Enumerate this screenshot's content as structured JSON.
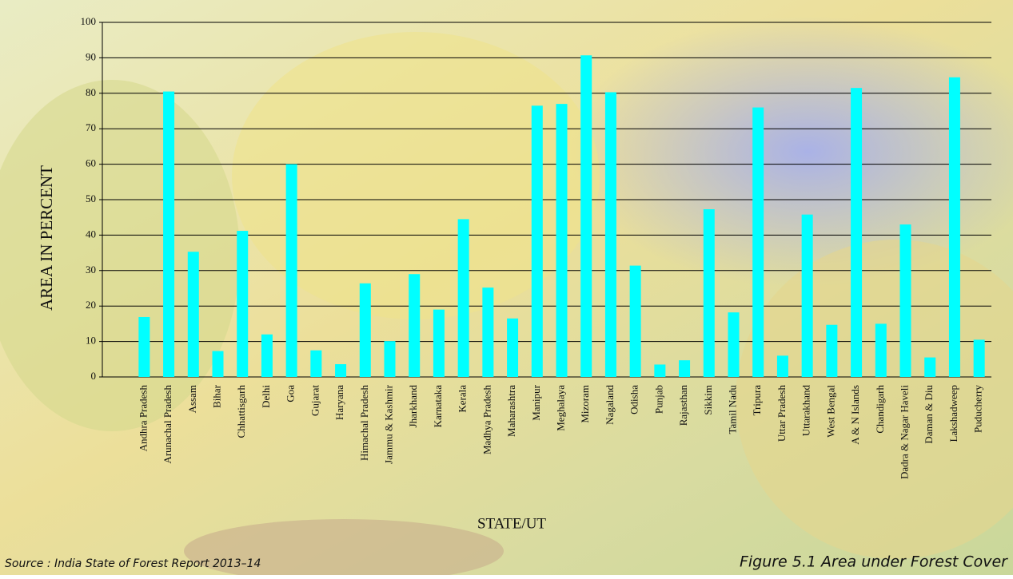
{
  "chart_data": {
    "type": "bar",
    "categories": [
      "Andhra Pradesh",
      "Arunachal Pradesh",
      "Assam",
      "Bihar",
      "Chhattisgarh",
      "Delhi",
      "Goa",
      "Gujarat",
      "Haryana",
      "Himachal Pradesh",
      "Jammu & Kashmir",
      "Jharkhand",
      "Karnataka",
      "Kerala",
      "Madhya Pradesh",
      "Maharashtra",
      "Manipur",
      "Meghalaya",
      "Mizoram",
      "Nagaland",
      "Odisha",
      "Punjab",
      "Rajasthan",
      "Sikkim",
      "Tamil Nadu",
      "Tripura",
      "Uttar Pradesh",
      "Uttarakhand",
      "West Bengal",
      "A & N Islands",
      "Chandigarh",
      "Dadra & Nagar Haveli",
      "Daman & Diu",
      "Lakshadweep",
      "Puducherry"
    ],
    "values": [
      16.9,
      80.5,
      35.3,
      7.3,
      41.2,
      12,
      60,
      7.5,
      3.6,
      26.4,
      10.1,
      29,
      19,
      44.5,
      25.2,
      16.5,
      76.5,
      77,
      90.7,
      80.3,
      31.4,
      3.5,
      4.7,
      47.3,
      18.2,
      76,
      6,
      45.8,
      14.7,
      81.5,
      15,
      43,
      5.5,
      84.5,
      10.5
    ],
    "color": "#00ffff",
    "xlabel": "STATE/UT",
    "ylabel": "AREA IN PERCENT",
    "ylim": [
      0,
      100
    ],
    "yticks": [
      0,
      10,
      20,
      30,
      40,
      50,
      60,
      70,
      80,
      90,
      100
    ],
    "grid": true,
    "source": "Source : India State of Forest Report 2013–14",
    "caption": "Figure 5.1 Area under Forest Cover"
  }
}
